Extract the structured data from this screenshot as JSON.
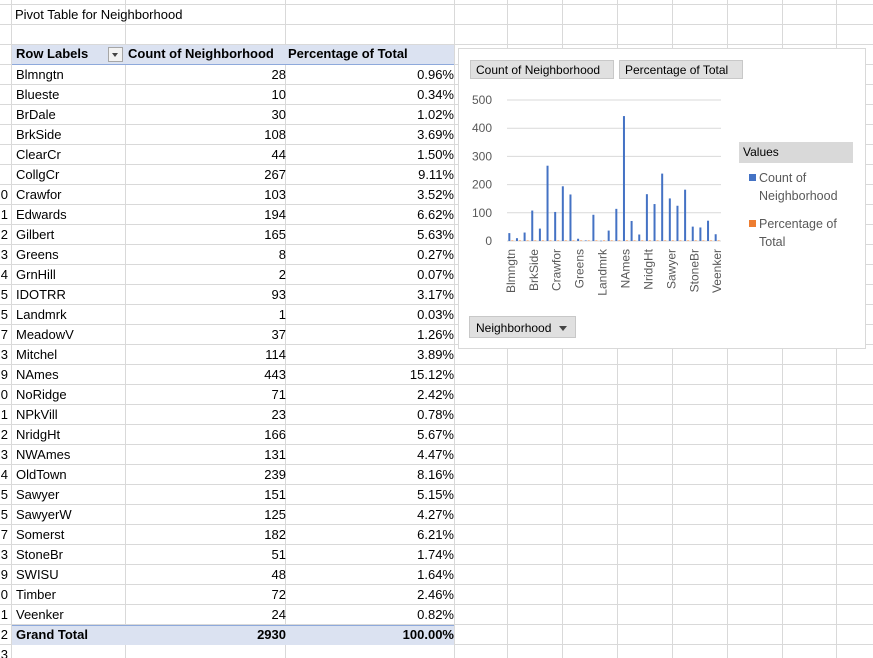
{
  "sheet": {
    "title": "Pivot Table for Neighborhood",
    "row_numbers": [
      "0",
      "1",
      "2",
      "3",
      "4",
      "5",
      "5",
      "7",
      "3",
      "9",
      "0",
      "1",
      "2",
      "3",
      "4",
      "5",
      "5",
      "7",
      "3",
      "9",
      "0",
      "1",
      "2",
      "3"
    ]
  },
  "pivot": {
    "headers": {
      "row_labels": "Row Labels",
      "count": "Count of Neighborhood",
      "pct": "Percentage of Total"
    },
    "rows": [
      {
        "label": "Blmngtn",
        "count": "28",
        "pct": "0.96%"
      },
      {
        "label": "Blueste",
        "count": "10",
        "pct": "0.34%"
      },
      {
        "label": "BrDale",
        "count": "30",
        "pct": "1.02%"
      },
      {
        "label": "BrkSide",
        "count": "108",
        "pct": "3.69%"
      },
      {
        "label": "ClearCr",
        "count": "44",
        "pct": "1.50%"
      },
      {
        "label": "CollgCr",
        "count": "267",
        "pct": "9.11%"
      },
      {
        "label": "Crawfor",
        "count": "103",
        "pct": "3.52%"
      },
      {
        "label": "Edwards",
        "count": "194",
        "pct": "6.62%"
      },
      {
        "label": "Gilbert",
        "count": "165",
        "pct": "5.63%"
      },
      {
        "label": "Greens",
        "count": "8",
        "pct": "0.27%"
      },
      {
        "label": "GrnHill",
        "count": "2",
        "pct": "0.07%"
      },
      {
        "label": "IDOTRR",
        "count": "93",
        "pct": "3.17%"
      },
      {
        "label": "Landmrk",
        "count": "1",
        "pct": "0.03%"
      },
      {
        "label": "MeadowV",
        "count": "37",
        "pct": "1.26%"
      },
      {
        "label": "Mitchel",
        "count": "114",
        "pct": "3.89%"
      },
      {
        "label": "NAmes",
        "count": "443",
        "pct": "15.12%"
      },
      {
        "label": "NoRidge",
        "count": "71",
        "pct": "2.42%"
      },
      {
        "label": "NPkVill",
        "count": "23",
        "pct": "0.78%"
      },
      {
        "label": "NridgHt",
        "count": "166",
        "pct": "5.67%"
      },
      {
        "label": "NWAmes",
        "count": "131",
        "pct": "4.47%"
      },
      {
        "label": "OldTown",
        "count": "239",
        "pct": "8.16%"
      },
      {
        "label": "Sawyer",
        "count": "151",
        "pct": "5.15%"
      },
      {
        "label": "SawyerW",
        "count": "125",
        "pct": "4.27%"
      },
      {
        "label": "Somerst",
        "count": "182",
        "pct": "6.21%"
      },
      {
        "label": "StoneBr",
        "count": "51",
        "pct": "1.74%"
      },
      {
        "label": "SWISU",
        "count": "48",
        "pct": "1.64%"
      },
      {
        "label": "Timber",
        "count": "72",
        "pct": "2.46%"
      },
      {
        "label": "Veenker",
        "count": "24",
        "pct": "0.82%"
      }
    ],
    "total": {
      "label": "Grand Total",
      "count": "2930",
      "pct": "100.00%"
    }
  },
  "chart_data": {
    "type": "bar",
    "categories": [
      "Blmngtn",
      "Blueste",
      "BrDale",
      "BrkSide",
      "ClearCr",
      "CollgCr",
      "Crawfor",
      "Edwards",
      "Gilbert",
      "Greens",
      "GrnHill",
      "IDOTRR",
      "Landmrk",
      "MeadowV",
      "Mitchel",
      "NAmes",
      "NoRidge",
      "NPkVill",
      "NridgHt",
      "NWAmes",
      "OldTown",
      "Sawyer",
      "SawyerW",
      "Somerst",
      "StoneBr",
      "SWISU",
      "Timber",
      "Veenker"
    ],
    "series": [
      {
        "name": "Count of Neighborhood",
        "color": "#4472c4",
        "values": [
          28,
          10,
          30,
          108,
          44,
          267,
          103,
          194,
          165,
          8,
          2,
          93,
          1,
          37,
          114,
          443,
          71,
          23,
          166,
          131,
          239,
          151,
          125,
          182,
          51,
          48,
          72,
          24
        ]
      },
      {
        "name": "Percentage of Total",
        "color": "#ed7d31",
        "values": [
          0.0096,
          0.0034,
          0.0102,
          0.0369,
          0.015,
          0.0911,
          0.0352,
          0.0662,
          0.0563,
          0.0027,
          0.0007,
          0.0317,
          0.0003,
          0.0126,
          0.0389,
          0.1512,
          0.0242,
          0.0078,
          0.0567,
          0.0447,
          0.0816,
          0.0515,
          0.0427,
          0.0621,
          0.0174,
          0.0164,
          0.0246,
          0.0082
        ]
      }
    ],
    "shown_tick_labels": [
      "Blmngtn",
      "BrkSide",
      "Crawfor",
      "Greens",
      "Landmrk",
      "NAmes",
      "NridgHt",
      "Sawyer",
      "StoneBr",
      "Veenker"
    ],
    "yticks": [
      "0",
      "100",
      "200",
      "300",
      "400",
      "500"
    ],
    "ylim": [
      0,
      500
    ],
    "grid": true,
    "legend": {
      "title": "Values",
      "position": "right"
    },
    "field_buttons": {
      "count": "Count of Neighborhood",
      "pct": "Percentage of Total",
      "axis": "Neighborhood"
    }
  }
}
